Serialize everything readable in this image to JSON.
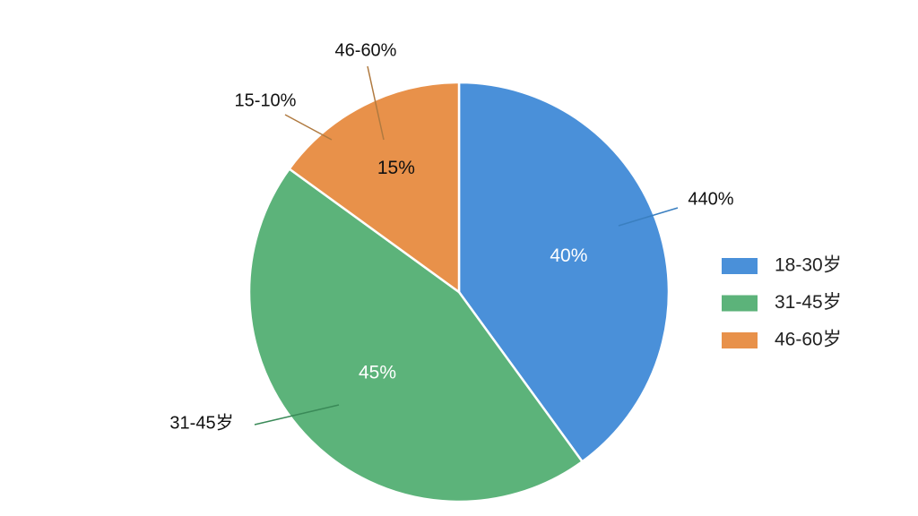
{
  "chart_data": {
    "type": "pie",
    "categories": [
      "18-30岁",
      "31-45岁",
      "46-60岁"
    ],
    "values": [
      40,
      45,
      15
    ],
    "value_labels": [
      "40%",
      "45%",
      "15%"
    ],
    "colors": [
      "#4a90d9",
      "#5cb37a",
      "#e8914a"
    ],
    "annotations": [
      "46-60%",
      "15-10%",
      "440%",
      "31-45岁"
    ]
  }
}
